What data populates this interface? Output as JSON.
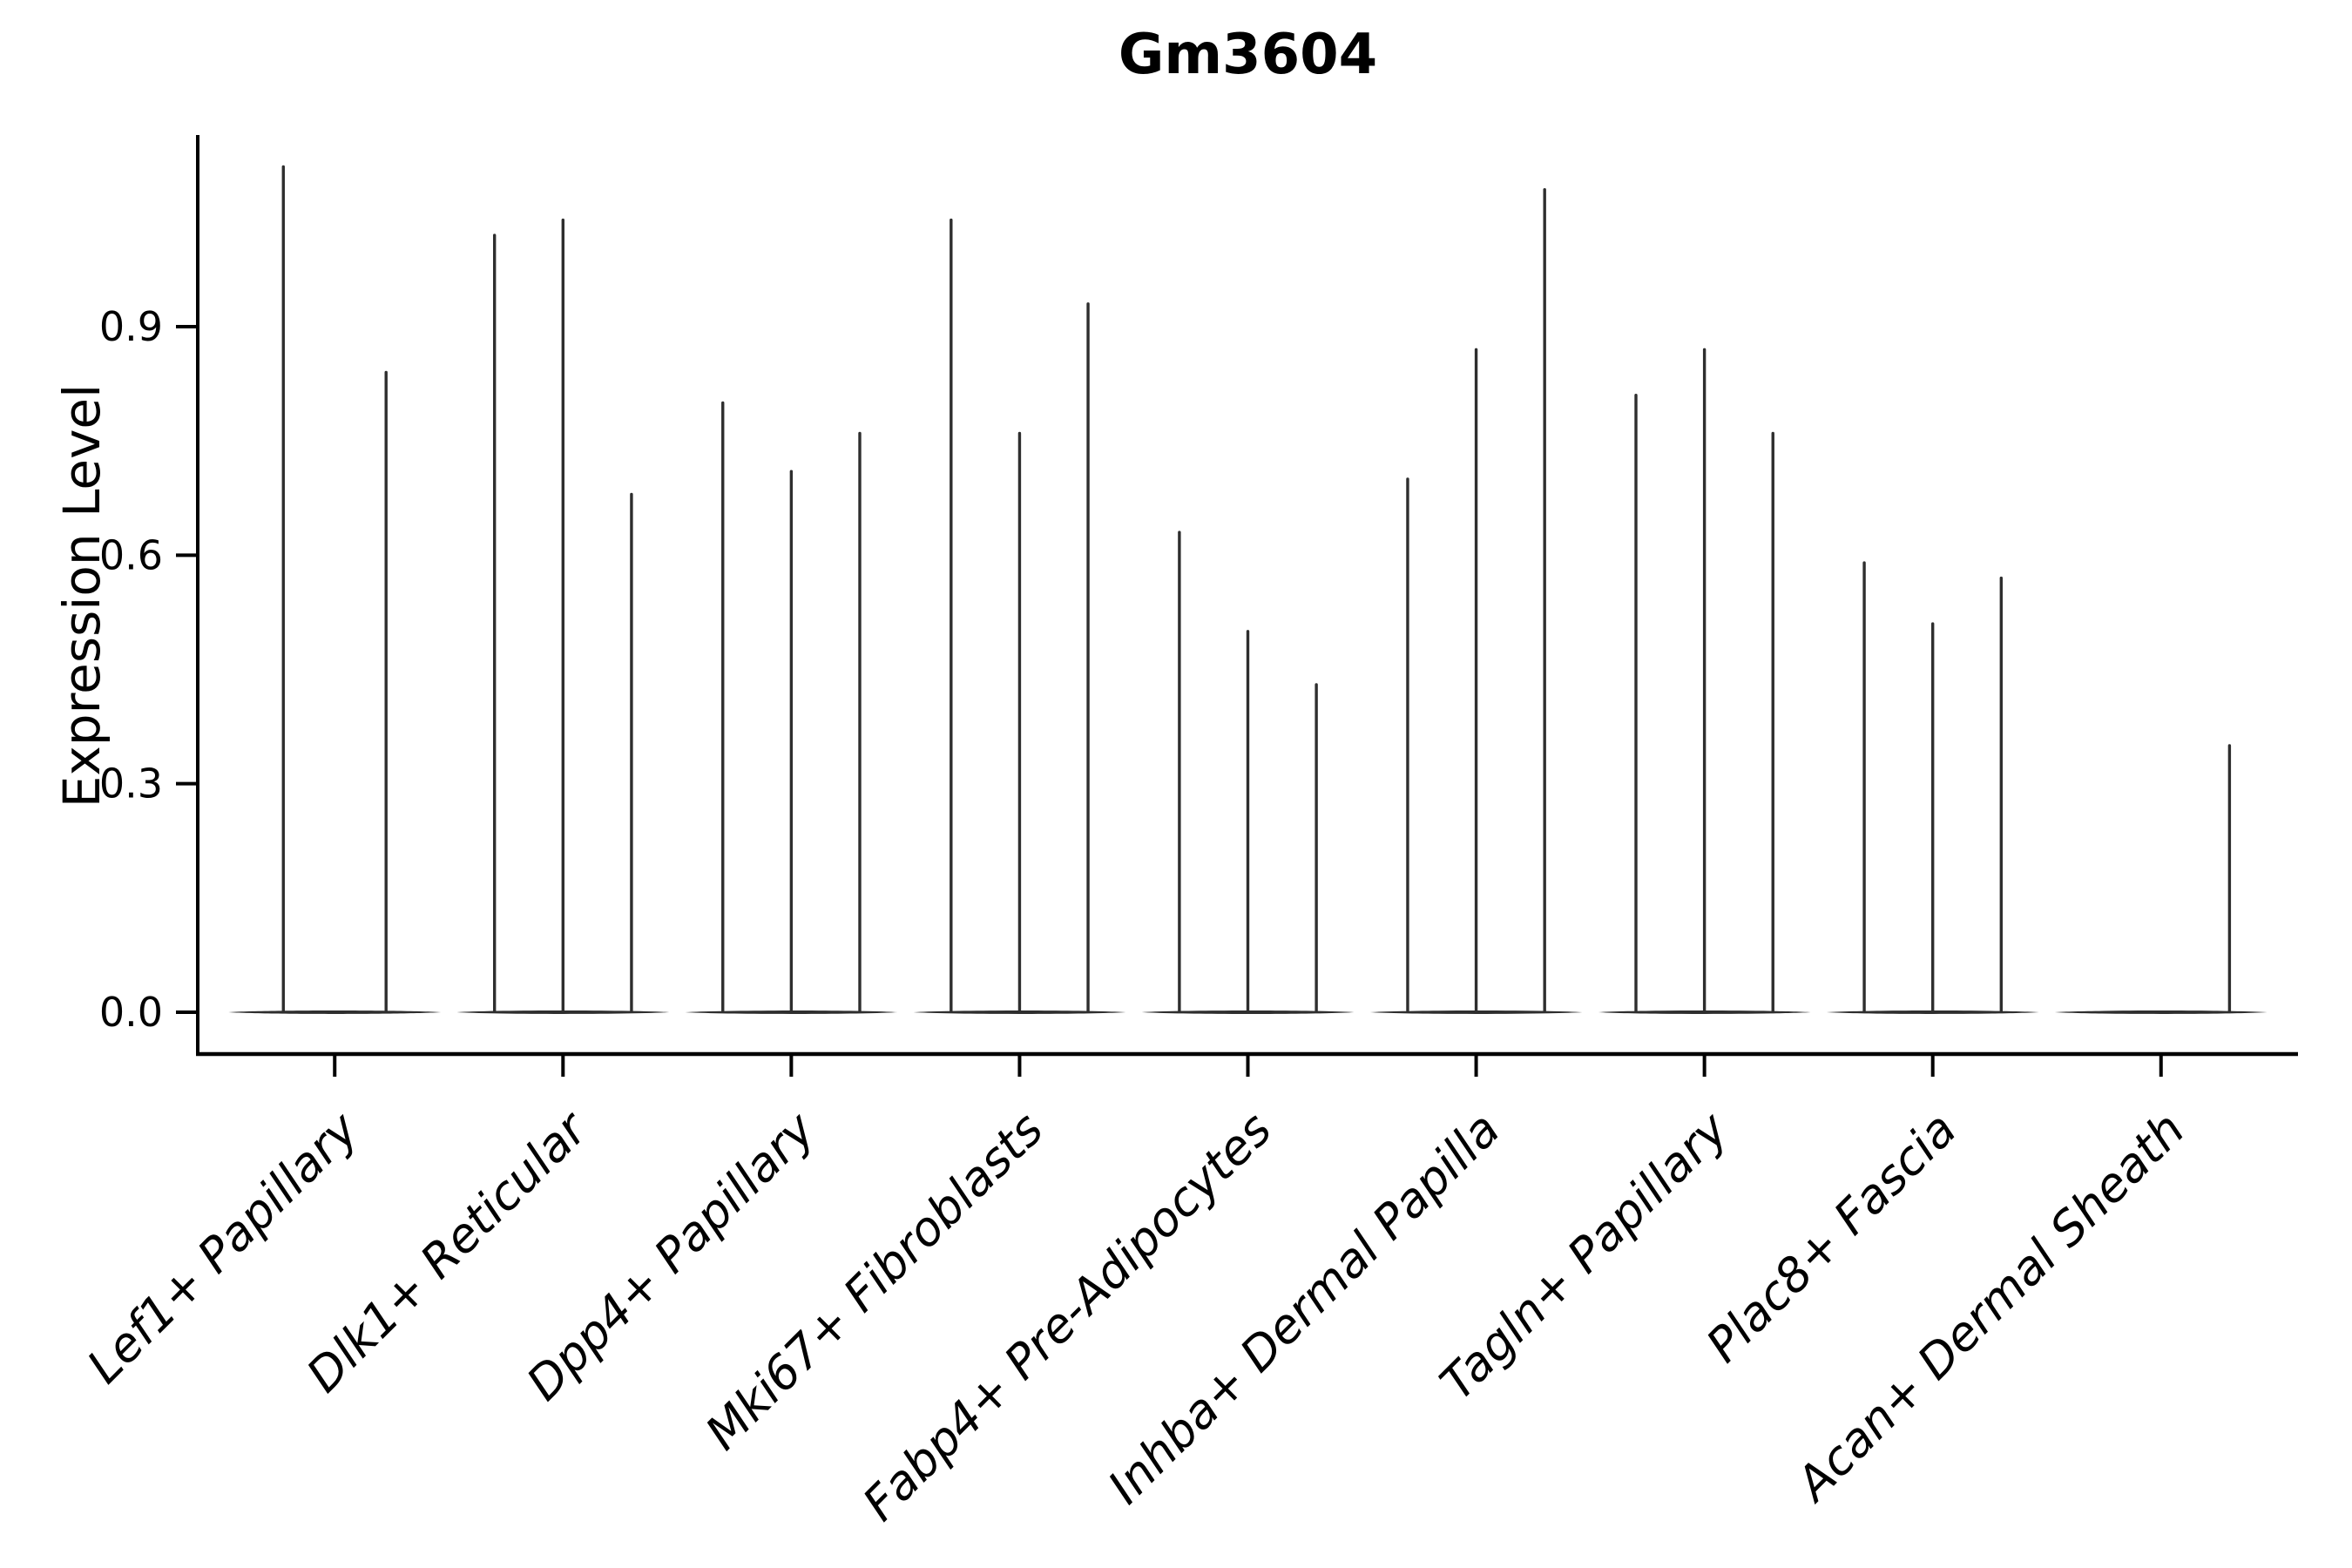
{
  "chart_data": {
    "type": "violin",
    "title": "Gm3604",
    "ylabel": "Expression Level",
    "xlabel": "",
    "yticks": [
      "0.0",
      "0.3",
      "0.6",
      "0.9"
    ],
    "ytick_values": [
      0.0,
      0.3,
      0.6,
      0.9
    ],
    "ylim": [
      -0.055,
      1.152
    ],
    "grid": false,
    "legend": null,
    "categories": [
      "Lef1+ Papillary",
      "Dlk1+ Reticular",
      "Dpp4+ Papillary",
      "Mki67+ Fibroblasts",
      "Fabp4+ Pre-Adipocytes",
      "Inhba+ Dermal Papilla",
      "Tagln+ Papillary",
      "Plac8+ Fascia",
      "Acan+ Dermal Sheath"
    ],
    "groups": [
      {
        "category": "Lef1+ Papillary",
        "violins": [
          {
            "offset": -0.225,
            "max": 1.11
          },
          {
            "offset": 0.225,
            "max": 0.84
          }
        ]
      },
      {
        "category": "Dlk1+ Reticular",
        "violins": [
          {
            "offset": -0.3,
            "max": 1.02
          },
          {
            "offset": 0,
            "max": 1.04
          },
          {
            "offset": 0.3,
            "max": 0.68
          }
        ]
      },
      {
        "category": "Dpp4+ Papillary",
        "violins": [
          {
            "offset": -0.3,
            "max": 0.8
          },
          {
            "offset": 0,
            "max": 0.71
          },
          {
            "offset": 0.3,
            "max": 0.76
          }
        ]
      },
      {
        "category": "Mki67+ Fibroblasts",
        "violins": [
          {
            "offset": -0.3,
            "max": 1.04
          },
          {
            "offset": 0,
            "max": 0.76
          },
          {
            "offset": 0.3,
            "max": 0.93
          }
        ]
      },
      {
        "category": "Fabp4+ Pre-Adipocytes",
        "violins": [
          {
            "offset": -0.3,
            "max": 0.63
          },
          {
            "offset": 0,
            "max": 0.5
          },
          {
            "offset": 0.3,
            "max": 0.43
          }
        ]
      },
      {
        "category": "Inhba+ Dermal Papilla",
        "violins": [
          {
            "offset": -0.3,
            "max": 0.7
          },
          {
            "offset": 0,
            "max": 0.87
          },
          {
            "offset": 0.3,
            "max": 1.08
          }
        ]
      },
      {
        "category": "Tagln+ Papillary",
        "violins": [
          {
            "offset": -0.3,
            "max": 0.81
          },
          {
            "offset": 0,
            "max": 0.87
          },
          {
            "offset": 0.3,
            "max": 0.76
          }
        ]
      },
      {
        "category": "Plac8+ Fascia",
        "violins": [
          {
            "offset": -0.3,
            "max": 0.59
          },
          {
            "offset": 0,
            "max": 0.51
          },
          {
            "offset": 0.3,
            "max": 0.57
          }
        ]
      },
      {
        "category": "Acan+ Dermal Sheath",
        "violins": [
          {
            "offset": -0.3,
            "max": 0.0
          },
          {
            "offset": 0,
            "max": 0.0
          },
          {
            "offset": 0.3,
            "max": 0.35
          }
        ]
      }
    ],
    "colors": {
      "violin": "#2e2e2e",
      "axis": "#000000",
      "background": "#ffffff"
    }
  }
}
